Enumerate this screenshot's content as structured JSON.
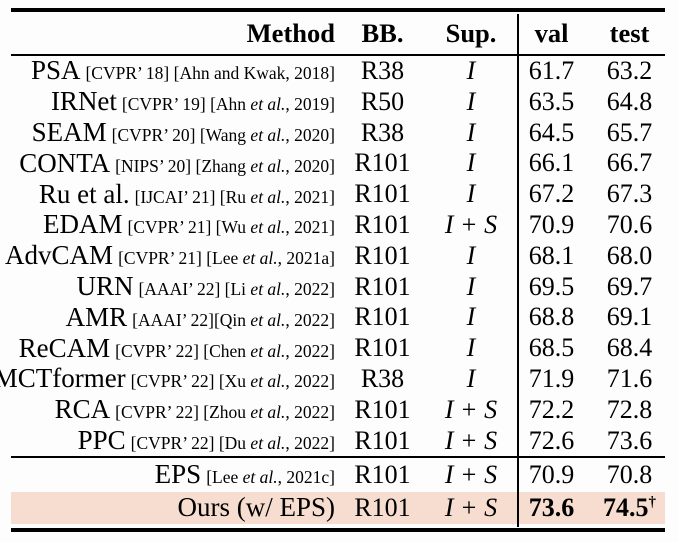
{
  "table": {
    "columns": {
      "method": "Method",
      "bb": "BB.",
      "sup": "Sup.",
      "val": "val",
      "test": "test"
    },
    "highlight_color": "#f6ddd0",
    "rows": [
      {
        "section": "main",
        "method": "PSA",
        "cite": "[CVPR’ 18] [Ahn and Kwak, 2018]",
        "bb": "R38",
        "sup": "I",
        "val": "61.7",
        "test": "63.2"
      },
      {
        "section": "main",
        "method": "IRNet",
        "cite": "[CVPR’ 19] [Ahn et al., 2019]",
        "bb": "R50",
        "sup": "I",
        "val": "63.5",
        "test": "64.8"
      },
      {
        "section": "main",
        "method": "SEAM",
        "cite": "[CVPR’ 20] [Wang et al., 2020]",
        "bb": "R38",
        "sup": "I",
        "val": "64.5",
        "test": "65.7"
      },
      {
        "section": "main",
        "method": "CONTA",
        "cite": "[NIPS’ 20] [Zhang et al., 2020]",
        "bb": "R101",
        "sup": "I",
        "val": "66.1",
        "test": "66.7"
      },
      {
        "section": "main",
        "method": "Ru et al.",
        "cite": "[IJCAI’ 21] [Ru et al., 2021]",
        "bb": "R101",
        "sup": "I",
        "val": "67.2",
        "test": "67.3"
      },
      {
        "section": "main",
        "method": "EDAM",
        "cite": "[CVPR’ 21] [Wu et al., 2021]",
        "bb": "R101",
        "sup": "I + S",
        "val": "70.9",
        "test": "70.6"
      },
      {
        "section": "main",
        "method": "AdvCAM",
        "cite": "[CVPR’ 21] [Lee et al., 2021a]",
        "bb": "R101",
        "sup": "I",
        "val": "68.1",
        "test": "68.0"
      },
      {
        "section": "main",
        "method": "URN",
        "cite": "[AAAI’ 22] [Li et al., 2022]",
        "bb": "R101",
        "sup": "I",
        "val": "69.5",
        "test": "69.7"
      },
      {
        "section": "main",
        "method": "AMR",
        "cite": "[AAAI’ 22][Qin et al., 2022]",
        "bb": "R101",
        "sup": "I",
        "val": "68.8",
        "test": "69.1"
      },
      {
        "section": "main",
        "method": "ReCAM",
        "cite": "[CVPR’ 22] [Chen et al., 2022]",
        "bb": "R101",
        "sup": "I",
        "val": "68.5",
        "test": "68.4"
      },
      {
        "section": "main",
        "method": "MCTformer",
        "cite": "[CVPR’ 22] [Xu et al., 2022]",
        "bb": "R38",
        "sup": "I",
        "val": "71.9",
        "test": "71.6"
      },
      {
        "section": "main",
        "method": "RCA",
        "cite": "[CVPR’ 22] [Zhou et al., 2022]",
        "bb": "R101",
        "sup": "I + S",
        "val": "72.2",
        "test": "72.8"
      },
      {
        "section": "main",
        "method": "PPC",
        "cite": "[CVPR’ 22] [Du et al., 2022]",
        "bb": "R101",
        "sup": "I + S",
        "val": "72.6",
        "test": "73.6"
      },
      {
        "section": "summary",
        "method": "EPS",
        "cite": "[Lee et al., 2021c]",
        "bb": "R101",
        "sup": "I + S",
        "val": "70.9",
        "test": "70.8"
      },
      {
        "section": "summary",
        "method": "Ours (w/ EPS)",
        "cite": "",
        "bb": "R101",
        "sup": "I + S",
        "val": "73.6",
        "test": "74.5",
        "dagger": "†",
        "bold_scores": true,
        "highlight": true
      }
    ]
  }
}
